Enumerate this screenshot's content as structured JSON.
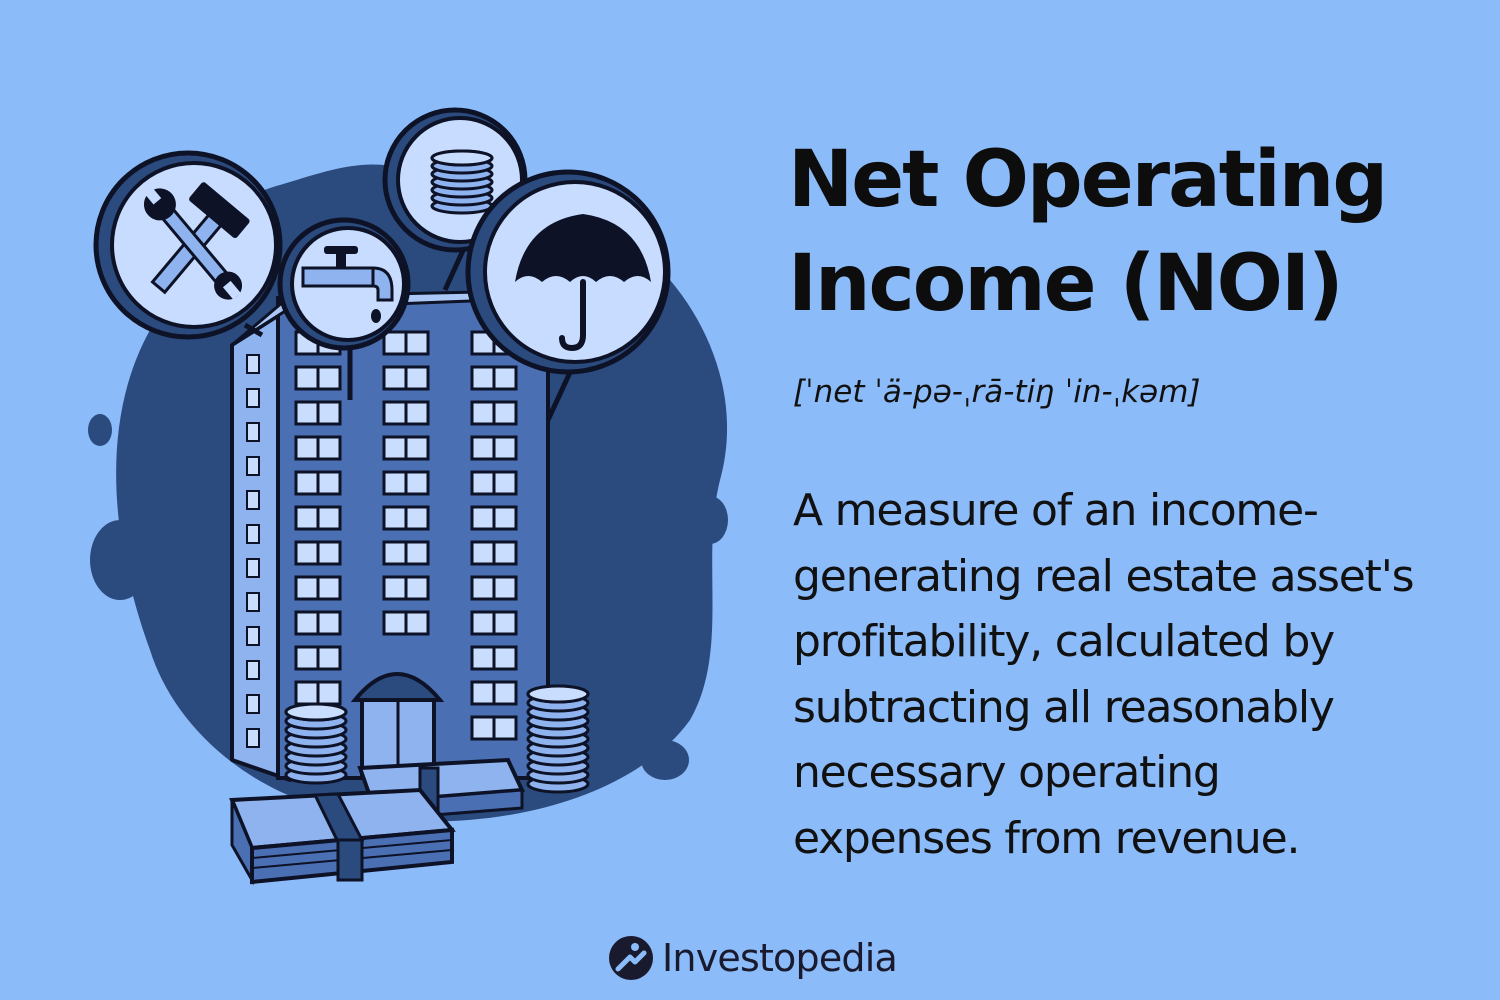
{
  "title": {
    "line1": "Net Operating",
    "line2": "Income (NOI)"
  },
  "pronunciation": "[ˈnet ˈä-pə-ˌrā-tiŋ ˈin-ˌkəm]",
  "definition": {
    "lines": [
      "A measure of an income-",
      "generating real estate asset's",
      "profitability, calculated by",
      "subtracting all reasonably",
      "necessary operating",
      "expenses from revenue."
    ]
  },
  "brand": {
    "name": "Investopedia"
  },
  "illustration": {
    "icons": [
      "hammer-wrench-icon",
      "faucet-icon",
      "coin-stack-icon",
      "umbrella-icon"
    ]
  },
  "colors": {
    "background": "#8cbbf9",
    "blob": "#2b4a7e",
    "building": "#4a6fb3",
    "outline": "#0d1226",
    "window": "#c9ddff",
    "circle_fill": "#c7dcff"
  }
}
